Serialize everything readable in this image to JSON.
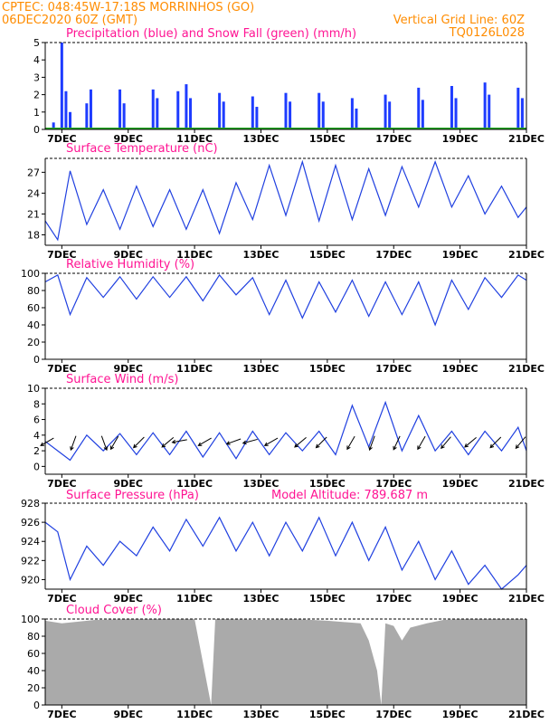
{
  "header": {
    "left_line1": "CPTEC:   048:45W-17:18S   MORRINHOS (GO)",
    "left_line2": "06DEC2020 60Z (GMT)",
    "right_line1": "Vertical Grid Line: 60Z",
    "right_line2": "TQ0126L028"
  },
  "colors": {
    "precip": "#1e3cff",
    "snow": "#22aa22",
    "line": "#2040e0",
    "title": "#ff1493",
    "header": "#ff8c00",
    "cloud": "#aaaaaa"
  },
  "chart_data": [
    {
      "type": "bar",
      "title": "Precipitation (blue) and Snow Fall (green) (mm/h)",
      "ylim": [
        0,
        5
      ],
      "yticks": [
        "0",
        "1",
        "2",
        "3",
        "4",
        "5"
      ],
      "xticks": [
        "7DEC",
        "9DEC",
        "11DEC",
        "13DEC",
        "15DEC",
        "17DEC",
        "19DEC",
        "21DEC"
      ],
      "x_range": [
        "2020-12-06T12",
        "2020-12-21T00"
      ],
      "grid": "dashed top border only",
      "series": [
        {
          "name": "Precipitation",
          "x": [
            "2020-12-06T18",
            "2020-12-07T00",
            "2020-12-07T03",
            "2020-12-07T06",
            "2020-12-07T18",
            "2020-12-07T21",
            "2020-12-08T18",
            "2020-12-08T21",
            "2020-12-09T18",
            "2020-12-09T21",
            "2020-12-10T12",
            "2020-12-10T18",
            "2020-12-10T21",
            "2020-12-11T18",
            "2020-12-11T21",
            "2020-12-12T18",
            "2020-12-12T21",
            "2020-12-13T18",
            "2020-12-13T21",
            "2020-12-14T18",
            "2020-12-14T21",
            "2020-12-15T18",
            "2020-12-15T21",
            "2020-12-16T18",
            "2020-12-16T21",
            "2020-12-17T18",
            "2020-12-17T21",
            "2020-12-18T18",
            "2020-12-18T21",
            "2020-12-19T18",
            "2020-12-19T21",
            "2020-12-20T18",
            "2020-12-20T21"
          ],
          "values": [
            0.4,
            5.0,
            2.2,
            1.0,
            1.5,
            2.3,
            2.3,
            1.5,
            2.3,
            1.8,
            2.2,
            2.6,
            1.8,
            2.1,
            1.6,
            1.9,
            1.3,
            2.1,
            1.6,
            2.1,
            1.6,
            1.8,
            1.2,
            2.0,
            1.6,
            2.4,
            1.7,
            2.5,
            1.8,
            2.7,
            2.0,
            2.4,
            1.8
          ]
        },
        {
          "name": "Snow Fall",
          "values": [
            0
          ]
        }
      ]
    },
    {
      "type": "line",
      "title": "Surface Temperature (nC)",
      "ylim": [
        16.5,
        29
      ],
      "yticks": [
        "18",
        "21",
        "24",
        "27"
      ],
      "xticks": [
        "7DEC",
        "9DEC",
        "11DEC",
        "13DEC",
        "15DEC",
        "17DEC",
        "19DEC",
        "21DEC"
      ],
      "x": [
        "2020-12-06T12",
        "2020-12-06T21",
        "2020-12-07T06",
        "2020-12-07T18",
        "2020-12-08T06",
        "2020-12-08T18",
        "2020-12-09T06",
        "2020-12-09T18",
        "2020-12-10T06",
        "2020-12-10T18",
        "2020-12-11T06",
        "2020-12-11T18",
        "2020-12-12T06",
        "2020-12-12T18",
        "2020-12-13T06",
        "2020-12-13T18",
        "2020-12-14T06",
        "2020-12-14T18",
        "2020-12-15T06",
        "2020-12-15T18",
        "2020-12-16T06",
        "2020-12-16T18",
        "2020-12-17T06",
        "2020-12-17T18",
        "2020-12-18T06",
        "2020-12-18T18",
        "2020-12-19T06",
        "2020-12-19T18",
        "2020-12-20T06",
        "2020-12-20T18",
        "2020-12-21T00"
      ],
      "values": [
        20.0,
        17.3,
        27.2,
        19.5,
        24.5,
        18.8,
        25.0,
        19.2,
        24.5,
        18.8,
        24.5,
        18.2,
        25.5,
        20.2,
        28.0,
        20.8,
        28.5,
        20.0,
        28.0,
        20.2,
        27.5,
        20.8,
        27.8,
        22.0,
        28.5,
        22.0,
        26.5,
        21.0,
        25.0,
        20.5,
        22.0
      ]
    },
    {
      "type": "line",
      "title": "Relative Humidity (%)",
      "ylim": [
        0,
        100
      ],
      "yticks": [
        "0",
        "20",
        "40",
        "60",
        "80",
        "100"
      ],
      "xticks": [
        "7DEC",
        "9DEC",
        "11DEC",
        "13DEC",
        "15DEC",
        "17DEC",
        "19DEC",
        "21DEC"
      ],
      "x": [
        "2020-12-06T12",
        "2020-12-06T21",
        "2020-12-07T06",
        "2020-12-07T18",
        "2020-12-08T06",
        "2020-12-08T18",
        "2020-12-09T06",
        "2020-12-09T18",
        "2020-12-10T06",
        "2020-12-10T18",
        "2020-12-11T06",
        "2020-12-11T18",
        "2020-12-12T06",
        "2020-12-12T18",
        "2020-12-13T06",
        "2020-12-13T18",
        "2020-12-14T06",
        "2020-12-14T18",
        "2020-12-15T06",
        "2020-12-15T18",
        "2020-12-16T06",
        "2020-12-16T18",
        "2020-12-17T06",
        "2020-12-17T18",
        "2020-12-18T06",
        "2020-12-18T18",
        "2020-12-19T06",
        "2020-12-19T18",
        "2020-12-20T06",
        "2020-12-20T18",
        "2020-12-21T00"
      ],
      "values": [
        90,
        98,
        52,
        95,
        72,
        96,
        70,
        96,
        72,
        96,
        68,
        98,
        75,
        95,
        52,
        92,
        48,
        90,
        55,
        92,
        50,
        90,
        52,
        90,
        40,
        92,
        58,
        95,
        72,
        98,
        92
      ]
    },
    {
      "type": "line",
      "title": "Surface Wind (m/s)",
      "ylim": [
        -1,
        10
      ],
      "yticks": [
        "0",
        "2",
        "4",
        "6",
        "8",
        "10"
      ],
      "xticks": [
        "7DEC",
        "9DEC",
        "11DEC",
        "13DEC",
        "15DEC",
        "17DEC",
        "19DEC",
        "21DEC"
      ],
      "x": [
        "2020-12-06T12",
        "2020-12-06T21",
        "2020-12-07T06",
        "2020-12-07T18",
        "2020-12-08T06",
        "2020-12-08T18",
        "2020-12-09T06",
        "2020-12-09T18",
        "2020-12-10T06",
        "2020-12-10T18",
        "2020-12-11T06",
        "2020-12-11T18",
        "2020-12-12T06",
        "2020-12-12T18",
        "2020-12-13T06",
        "2020-12-13T18",
        "2020-12-14T06",
        "2020-12-14T18",
        "2020-12-15T06",
        "2020-12-15T18",
        "2020-12-16T06",
        "2020-12-16T18",
        "2020-12-17T06",
        "2020-12-17T18",
        "2020-12-18T06",
        "2020-12-18T18",
        "2020-12-19T06",
        "2020-12-19T18",
        "2020-12-20T06",
        "2020-12-20T18",
        "2020-12-21T00"
      ],
      "values": [
        3.2,
        2.0,
        0.8,
        4.0,
        2.0,
        4.2,
        1.5,
        4.3,
        1.5,
        4.5,
        1.2,
        4.3,
        1.0,
        4.5,
        1.5,
        4.3,
        2.0,
        4.5,
        1.5,
        7.8,
        2.5,
        8.2,
        2.0,
        6.5,
        2.0,
        4.5,
        1.5,
        4.5,
        2.0,
        5.0,
        2.0
      ],
      "arrows": {
        "x": [
          "2020-12-06T15",
          "2020-12-07T09",
          "2020-12-08T06",
          "2020-12-08T15",
          "2020-12-09T09",
          "2020-12-10T06",
          "2020-12-10T15",
          "2020-12-11T09",
          "2020-12-12T06",
          "2020-12-12T18",
          "2020-12-13T09",
          "2020-12-14T06",
          "2020-12-14T21",
          "2020-12-15T18",
          "2020-12-16T09",
          "2020-12-17T03",
          "2020-12-17T21",
          "2020-12-18T15",
          "2020-12-19T09",
          "2020-12-20T03",
          "2020-12-20T21"
        ],
        "direction_deg": [
          60,
          20,
          340,
          30,
          45,
          50,
          80,
          60,
          70,
          75,
          60,
          50,
          45,
          30,
          20,
          25,
          30,
          40,
          50,
          45,
          40
        ]
      }
    },
    {
      "type": "line",
      "title": "Surface Pressure (hPa)",
      "annotation": "Model Altitude: 789.687 m",
      "ylim": [
        919,
        928
      ],
      "yticks": [
        "920",
        "922",
        "924",
        "926",
        "928"
      ],
      "xticks": [
        "7DEC",
        "9DEC",
        "11DEC",
        "13DEC",
        "15DEC",
        "17DEC",
        "19DEC",
        "21DEC"
      ],
      "x": [
        "2020-12-06T12",
        "2020-12-06T21",
        "2020-12-07T06",
        "2020-12-07T18",
        "2020-12-08T06",
        "2020-12-08T18",
        "2020-12-09T06",
        "2020-12-09T18",
        "2020-12-10T06",
        "2020-12-10T18",
        "2020-12-11T06",
        "2020-12-11T18",
        "2020-12-12T06",
        "2020-12-12T18",
        "2020-12-13T06",
        "2020-12-13T18",
        "2020-12-14T06",
        "2020-12-14T18",
        "2020-12-15T06",
        "2020-12-15T18",
        "2020-12-16T06",
        "2020-12-16T18",
        "2020-12-17T06",
        "2020-12-17T18",
        "2020-12-18T06",
        "2020-12-18T18",
        "2020-12-19T06",
        "2020-12-19T18",
        "2020-12-20T06",
        "2020-12-20T18",
        "2020-12-21T00"
      ],
      "values": [
        926.0,
        925.0,
        920.0,
        923.5,
        921.5,
        924.0,
        922.5,
        925.5,
        923.0,
        926.3,
        923.5,
        926.5,
        923.0,
        926.0,
        922.5,
        926.0,
        923.0,
        926.5,
        922.5,
        926.0,
        922.0,
        925.5,
        921.0,
        924.0,
        920.0,
        923.0,
        919.5,
        921.5,
        919.0,
        920.5,
        921.5
      ]
    },
    {
      "type": "area",
      "title": "Cloud Cover (%)",
      "ylim": [
        0,
        100
      ],
      "yticks": [
        "0",
        "20",
        "40",
        "60",
        "80",
        "100"
      ],
      "xticks": [
        "7DEC",
        "9DEC",
        "11DEC",
        "13DEC",
        "15DEC",
        "17DEC",
        "19DEC",
        "21DEC"
      ],
      "x": [
        "2020-12-06T12",
        "2020-12-07T00",
        "2020-12-08T00",
        "2020-12-09T00",
        "2020-12-10T00",
        "2020-12-11T00",
        "2020-12-11T12",
        "2020-12-11T15",
        "2020-12-12T00",
        "2020-12-13T00",
        "2020-12-14T00",
        "2020-12-15T00",
        "2020-12-16T00",
        "2020-12-16T06",
        "2020-12-16T12",
        "2020-12-16T15",
        "2020-12-16T18",
        "2020-12-17T00",
        "2020-12-17T06",
        "2020-12-17T12",
        "2020-12-18T00",
        "2020-12-18T12",
        "2020-12-19T00",
        "2020-12-20T00",
        "2020-12-21T00"
      ],
      "values": [
        98,
        95,
        99,
        100,
        100,
        100,
        0,
        100,
        100,
        99,
        100,
        98,
        95,
        75,
        40,
        0,
        95,
        92,
        75,
        90,
        95,
        99,
        100,
        100,
        100
      ]
    }
  ]
}
